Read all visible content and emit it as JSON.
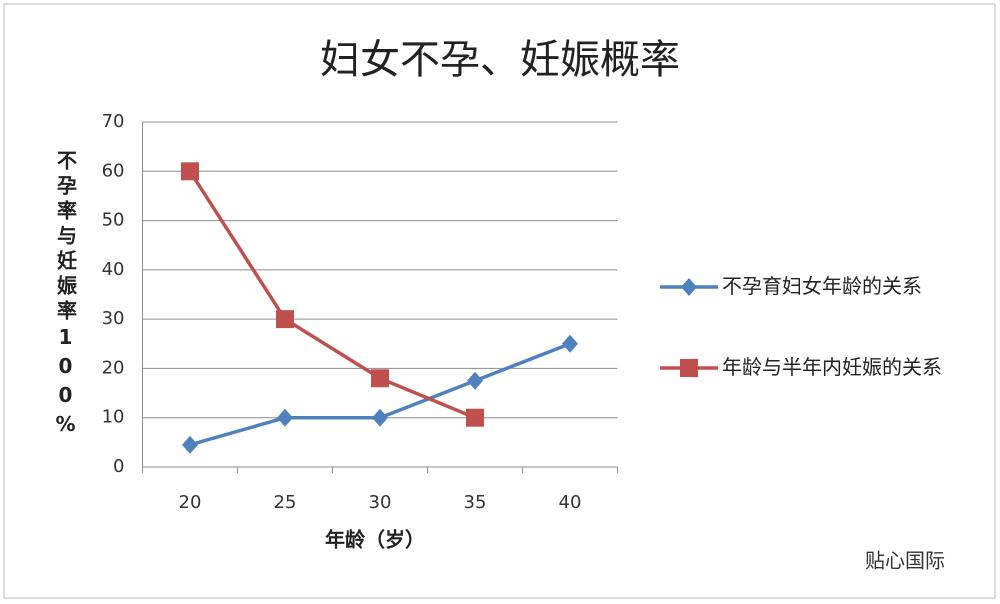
{
  "chart_data": {
    "type": "line",
    "title": "妇女不孕、妊娠概率",
    "x_label": "年龄（岁）",
    "y_label": "不孕率与妊娠率100%",
    "categories": [
      "20",
      "25",
      "30",
      "35",
      "40"
    ],
    "series": [
      {
        "name": "不孕育妇女年龄的关系",
        "color": "#4f81bd",
        "marker": "diamond",
        "values": [
          4.5,
          10,
          10,
          17.5,
          25
        ]
      },
      {
        "name": "年龄与半年内妊娠的关系",
        "color": "#c0504d",
        "marker": "square",
        "values": [
          60,
          30,
          18,
          10,
          null
        ]
      }
    ],
    "ylim": [
      0,
      70
    ],
    "yticks": [
      0,
      10,
      20,
      30,
      40,
      50,
      60,
      70
    ],
    "grid": true,
    "legend": "right",
    "watermark": "贴心国际"
  }
}
